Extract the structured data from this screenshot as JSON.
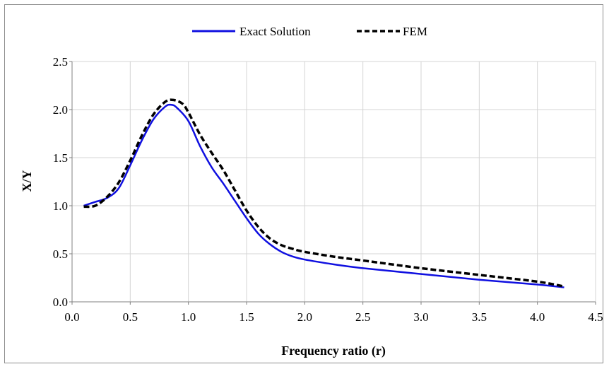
{
  "chart_data": {
    "type": "line",
    "title": "",
    "xlabel": "Frequency ratio (r)",
    "ylabel": "X/Y",
    "xlim": [
      0.0,
      4.5
    ],
    "ylim": [
      0.0,
      2.5
    ],
    "xticks": [
      "0.0",
      "0.5",
      "1.0",
      "1.5",
      "2.0",
      "2.5",
      "3.0",
      "3.5",
      "4.0",
      "4.5"
    ],
    "yticks": [
      "0.0",
      "0.5",
      "1.0",
      "1.5",
      "2.0",
      "2.5"
    ],
    "grid": true,
    "legend_position": "top-center",
    "series": [
      {
        "name": "Exact Solution",
        "color": "#1010e0",
        "style": "solid",
        "points": [
          [
            0.1,
            1.0
          ],
          [
            0.2,
            1.04
          ],
          [
            0.3,
            1.08
          ],
          [
            0.4,
            1.18
          ],
          [
            0.5,
            1.42
          ],
          [
            0.6,
            1.68
          ],
          [
            0.7,
            1.9
          ],
          [
            0.8,
            2.03
          ],
          [
            0.85,
            2.05
          ],
          [
            0.9,
            2.02
          ],
          [
            1.0,
            1.88
          ],
          [
            1.1,
            1.62
          ],
          [
            1.2,
            1.4
          ],
          [
            1.3,
            1.23
          ],
          [
            1.4,
            1.05
          ],
          [
            1.5,
            0.87
          ],
          [
            1.6,
            0.71
          ],
          [
            1.7,
            0.6
          ],
          [
            1.8,
            0.52
          ],
          [
            1.9,
            0.47
          ],
          [
            2.0,
            0.44
          ],
          [
            2.25,
            0.39
          ],
          [
            2.5,
            0.35
          ],
          [
            3.0,
            0.29
          ],
          [
            3.5,
            0.23
          ],
          [
            4.0,
            0.18
          ],
          [
            4.23,
            0.15
          ]
        ]
      },
      {
        "name": "FEM",
        "color": "#000000",
        "style": "dashed",
        "points": [
          [
            0.1,
            0.99
          ],
          [
            0.2,
            1.0
          ],
          [
            0.3,
            1.09
          ],
          [
            0.4,
            1.24
          ],
          [
            0.5,
            1.47
          ],
          [
            0.6,
            1.73
          ],
          [
            0.7,
            1.95
          ],
          [
            0.8,
            2.08
          ],
          [
            0.87,
            2.1
          ],
          [
            0.95,
            2.06
          ],
          [
            1.0,
            1.97
          ],
          [
            1.1,
            1.74
          ],
          [
            1.2,
            1.55
          ],
          [
            1.3,
            1.37
          ],
          [
            1.4,
            1.16
          ],
          [
            1.5,
            0.95
          ],
          [
            1.6,
            0.78
          ],
          [
            1.7,
            0.66
          ],
          [
            1.8,
            0.59
          ],
          [
            1.9,
            0.55
          ],
          [
            2.0,
            0.52
          ],
          [
            2.25,
            0.47
          ],
          [
            2.5,
            0.43
          ],
          [
            3.0,
            0.35
          ],
          [
            3.5,
            0.28
          ],
          [
            4.0,
            0.21
          ],
          [
            4.23,
            0.16
          ]
        ]
      }
    ]
  }
}
